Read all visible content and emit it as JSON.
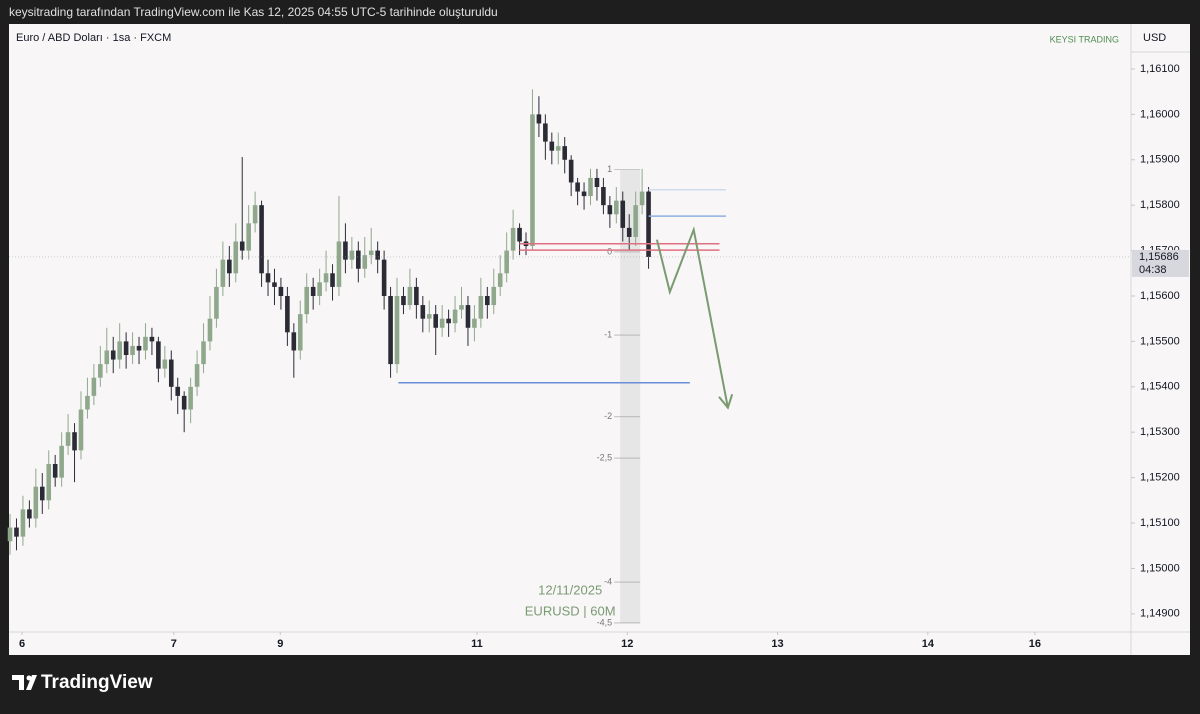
{
  "header": "keysitrading tarafından TradingView.com ile Kas 12, 2025 04:55 UTC-5 tarihinde oluşturuldu",
  "brand": "TradingView",
  "chart_data": {
    "type": "candlestick",
    "title": "Euro / ABD Doları · 1sa · FXCM",
    "watermark": "KEYSI TRADING",
    "currency": "USD",
    "up_color": "#8fa88c",
    "down_color": "#2b2b36",
    "x": [
      0,
      1,
      2,
      3,
      4,
      5,
      6,
      7,
      8,
      9,
      10,
      11,
      12,
      13,
      14,
      15,
      16,
      17,
      18,
      19,
      20,
      21,
      22,
      23,
      24,
      25,
      26,
      27,
      28,
      29,
      30,
      31,
      32,
      33,
      34,
      35,
      36,
      37,
      38,
      39,
      40,
      41,
      42,
      43,
      44,
      45,
      46,
      47,
      48,
      49,
      50,
      51,
      52,
      53,
      54,
      55,
      56,
      57,
      58,
      59,
      60,
      61,
      62,
      63,
      64,
      65,
      66,
      67,
      68,
      69,
      70,
      71,
      72,
      73,
      74,
      75,
      76,
      77,
      78,
      79,
      80,
      81,
      82,
      83,
      84,
      85,
      86,
      87,
      88,
      89,
      90,
      91,
      92,
      93,
      94,
      95,
      96,
      97,
      98,
      99
    ],
    "open": [
      1.1506,
      1.1509,
      1.1507,
      1.1513,
      1.1511,
      1.1518,
      1.1515,
      1.1523,
      1.152,
      1.1527,
      1.153,
      1.1526,
      1.1535,
      1.1538,
      1.1542,
      1.1545,
      1.1548,
      1.1546,
      1.155,
      1.1547,
      1.1549,
      1.1548,
      1.1551,
      1.155,
      1.1544,
      1.1546,
      1.154,
      1.1538,
      1.1535,
      1.154,
      1.1545,
      1.155,
      1.1555,
      1.1562,
      1.1568,
      1.1565,
      1.1572,
      1.157,
      1.1576,
      1.158,
      1.1565,
      1.1563,
      1.1562,
      1.156,
      1.1552,
      1.1548,
      1.1556,
      1.1562,
      1.156,
      1.1563,
      1.1565,
      1.1562,
      1.1572,
      1.1568,
      1.157,
      1.1566,
      1.1569,
      1.157,
      1.1568,
      1.156,
      1.1545,
      1.156,
      1.1558,
      1.1562,
      1.1558,
      1.1555,
      1.1556,
      1.1553,
      1.1555,
      1.1554,
      1.1557,
      1.1558,
      1.1553,
      1.1555,
      1.156,
      1.1558,
      1.1562,
      1.1565,
      1.157,
      1.1575,
      1.1572,
      1.1571,
      1.16,
      1.1598,
      1.1594,
      1.1592,
      1.1593,
      1.159,
      1.1585,
      1.1583,
      1.1582,
      1.1586,
      1.1584,
      1.158,
      1.1578,
      1.1581,
      1.1575,
      1.1573,
      1.158,
      1.1583
    ],
    "high": [
      1.1512,
      1.1511,
      1.1516,
      1.1515,
      1.1522,
      1.1521,
      1.1526,
      1.1525,
      1.153,
      1.1534,
      1.1532,
      1.1539,
      1.1542,
      1.1545,
      1.1549,
      1.1553,
      1.1551,
      1.1554,
      1.1552,
      1.1552,
      1.1551,
      1.1554,
      1.1553,
      1.1551,
      1.1549,
      1.1548,
      1.1542,
      1.1539,
      1.1542,
      1.1548,
      1.1554,
      1.156,
      1.1566,
      1.1572,
      1.1571,
      1.1576,
      1.15906,
      1.158,
      1.1583,
      1.1581,
      1.1568,
      1.1566,
      1.1564,
      1.1562,
      1.1554,
      1.1559,
      1.1565,
      1.1564,
      1.1566,
      1.157,
      1.1567,
      1.1582,
      1.1576,
      1.1573,
      1.1572,
      1.1573,
      1.1575,
      1.1572,
      1.157,
      1.1562,
      1.1564,
      1.1562,
      1.1566,
      1.1564,
      1.156,
      1.1559,
      1.1558,
      1.1558,
      1.1557,
      1.156,
      1.1562,
      1.156,
      1.1558,
      1.1564,
      1.1562,
      1.1566,
      1.1569,
      1.1574,
      1.1579,
      1.1576,
      1.1574,
      1.16055,
      1.1604,
      1.16,
      1.1596,
      1.1596,
      1.1595,
      1.1591,
      1.1586,
      1.1585,
      1.1588,
      1.1588,
      1.1586,
      1.1582,
      1.1584,
      1.1583,
      1.1578,
      1.1583,
      1.1588,
      1.1584
    ],
    "low": [
      1.1503,
      1.1504,
      1.1505,
      1.1509,
      1.1509,
      1.1512,
      1.1513,
      1.1518,
      1.1518,
      1.1525,
      1.1519,
      1.1524,
      1.1533,
      1.1536,
      1.154,
      1.1543,
      1.1543,
      1.1544,
      1.1544,
      1.1545,
      1.1545,
      1.1546,
      1.1547,
      1.1541,
      1.1542,
      1.1537,
      1.1534,
      1.153,
      1.1532,
      1.1538,
      1.1543,
      1.1548,
      1.1553,
      1.156,
      1.1562,
      1.1563,
      1.1568,
      1.1568,
      1.1574,
      1.1562,
      1.156,
      1.1558,
      1.1557,
      1.1549,
      1.1542,
      1.1546,
      1.1554,
      1.1557,
      1.1558,
      1.1561,
      1.1559,
      1.156,
      1.1565,
      1.1566,
      1.1563,
      1.1564,
      1.1567,
      1.1565,
      1.1557,
      1.1542,
      1.1543,
      1.1556,
      1.1557,
      1.1555,
      1.1552,
      1.1552,
      1.1547,
      1.1551,
      1.1551,
      1.1552,
      1.1555,
      1.1549,
      1.155,
      1.1553,
      1.1555,
      1.1556,
      1.156,
      1.1563,
      1.1568,
      1.1569,
      1.1569,
      1.157,
      1.1595,
      1.159,
      1.1589,
      1.1589,
      1.1587,
      1.1582,
      1.158,
      1.1579,
      1.158,
      1.1581,
      1.1578,
      1.1575,
      1.1576,
      1.1572,
      1.157,
      1.1571,
      1.1578,
      1.1566
    ],
    "close": [
      1.1509,
      1.1507,
      1.1513,
      1.1511,
      1.1518,
      1.1515,
      1.1523,
      1.152,
      1.1527,
      1.153,
      1.1526,
      1.1535,
      1.1538,
      1.1542,
      1.1545,
      1.1548,
      1.1546,
      1.155,
      1.1547,
      1.1549,
      1.1548,
      1.1551,
      1.155,
      1.1544,
      1.1546,
      1.154,
      1.1538,
      1.1535,
      1.154,
      1.1545,
      1.155,
      1.1555,
      1.1562,
      1.1568,
      1.1565,
      1.1572,
      1.157,
      1.1576,
      1.158,
      1.1565,
      1.1563,
      1.1562,
      1.156,
      1.1552,
      1.1548,
      1.1556,
      1.1562,
      1.156,
      1.1563,
      1.1565,
      1.1562,
      1.1572,
      1.1568,
      1.157,
      1.1566,
      1.1569,
      1.157,
      1.1568,
      1.156,
      1.1545,
      1.156,
      1.1558,
      1.1562,
      1.1558,
      1.1555,
      1.1556,
      1.1553,
      1.1555,
      1.1554,
      1.1557,
      1.1558,
      1.1553,
      1.1555,
      1.156,
      1.1558,
      1.1562,
      1.1565,
      1.157,
      1.1575,
      1.1572,
      1.1571,
      1.16,
      1.1598,
      1.1594,
      1.1592,
      1.1593,
      1.159,
      1.1585,
      1.1583,
      1.1582,
      1.1586,
      1.1584,
      1.158,
      1.1578,
      1.1581,
      1.1575,
      1.1573,
      1.158,
      1.1583,
      1.15686
    ],
    "xlim": [
      -0.16,
      173.8
    ],
    "xticks": [
      {
        "value": 1.86,
        "label": "6"
      },
      {
        "value": 25.4,
        "label": "7"
      },
      {
        "value": 41.9,
        "label": "9"
      },
      {
        "value": 72.4,
        "label": "11"
      },
      {
        "value": 95.7,
        "label": "12"
      },
      {
        "value": 119,
        "label": "13"
      },
      {
        "value": 142.3,
        "label": "14"
      },
      {
        "value": 158.9,
        "label": "16"
      }
    ],
    "ylim": [
      1.1486,
      1.16199
    ],
    "yticks": [
      {
        "value": 1.161,
        "label": "1,16100"
      },
      {
        "value": 1.16,
        "label": "1,16000"
      },
      {
        "value": 1.159,
        "label": "1,15900"
      },
      {
        "value": 1.158,
        "label": "1,15800"
      },
      {
        "value": 1.157,
        "label": "1,15700"
      },
      {
        "value": 1.156,
        "label": "1,15600"
      },
      {
        "value": 1.155,
        "label": "1,15500"
      },
      {
        "value": 1.154,
        "label": "1,15400"
      },
      {
        "value": 1.153,
        "label": "1,15300"
      },
      {
        "value": 1.152,
        "label": "1,15200"
      },
      {
        "value": 1.151,
        "label": "1,15100"
      },
      {
        "value": 1.15,
        "label": "1,15000"
      },
      {
        "value": 1.149,
        "label": "1,14900"
      }
    ],
    "last_price": {
      "value": 1.15686,
      "label": "1,15686",
      "countdown": "04:38"
    },
    "lines": [
      {
        "y": 1.15409,
        "x": [
          60.2,
          105.4
        ],
        "color": "#6b8fd6"
      },
      {
        "y": 1.15715,
        "x": [
          79,
          110
        ],
        "color": "#e07080"
      },
      {
        "y": 1.15701,
        "x": [
          79,
          110
        ],
        "color": "#e07080"
      },
      {
        "y": 1.15776,
        "x": [
          99,
          111
        ],
        "color": "#8fb0e0"
      },
      {
        "y": 1.15834,
        "x": [
          99,
          111
        ],
        "color": "#cfdcf0"
      }
    ],
    "fib": {
      "x": [
        94.6,
        97.7
      ],
      "levels": [
        {
          "price": 1.15878,
          "label": "1"
        },
        {
          "price": 1.15697,
          "label": "0"
        },
        {
          "price": 1.15514,
          "label": "-1"
        },
        {
          "price": 1.15334,
          "label": "-2"
        },
        {
          "price": 1.15243,
          "label": "-2,5"
        },
        {
          "price": 1.1497,
          "label": "-4"
        },
        {
          "price": 1.1488,
          "label": "-4,5"
        }
      ]
    },
    "projection": {
      "color": "#7a9a72",
      "x": [
        100.3,
        102.3,
        106,
        111.3
      ],
      "y": [
        1.15724,
        1.15609,
        1.15746,
        1.15354
      ]
    },
    "annotations": [
      "12/11/2025",
      "EURUSD | 60M"
    ]
  }
}
